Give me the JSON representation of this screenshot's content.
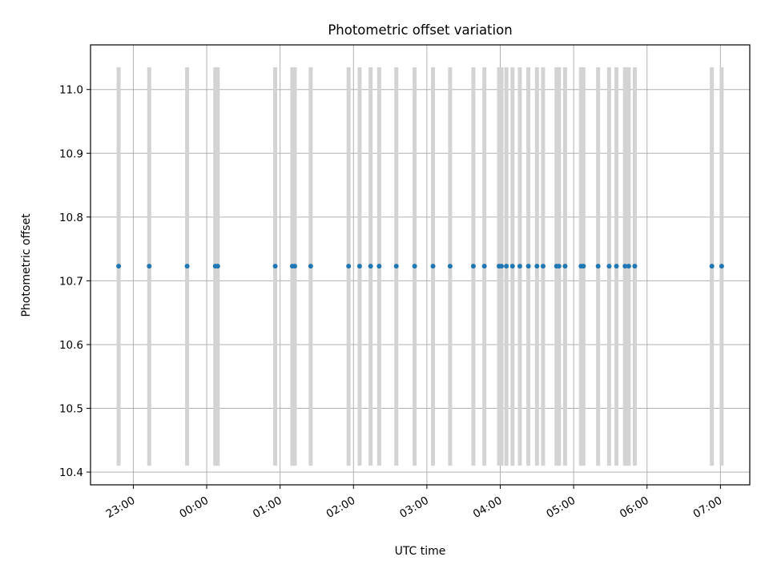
{
  "chart_data": {
    "type": "scatter",
    "title": "Photometric offset variation",
    "xlabel": "UTC time",
    "ylabel": "Photometric offset",
    "x_axis_type": "time",
    "xlim": [
      "22:25",
      "07:24"
    ],
    "ylim": [
      10.38,
      11.07
    ],
    "x_ticks": [
      "23:00",
      "00:00",
      "01:00",
      "02:00",
      "03:00",
      "04:00",
      "05:00",
      "06:00",
      "07:00"
    ],
    "y_ticks": [
      "10.4",
      "10.5",
      "10.6",
      "10.7",
      "10.8",
      "10.9",
      "11.0"
    ],
    "grid": true,
    "point_color": "#1f77b4",
    "errorbar_color": "#d3d3d3",
    "points": [
      {
        "x": "22:48",
        "y": 10.723,
        "y_low": 10.41,
        "y_high": 11.035
      },
      {
        "x": "23:13",
        "y": 10.723,
        "y_low": 10.41,
        "y_high": 11.035
      },
      {
        "x": "23:44",
        "y": 10.723,
        "y_low": 10.41,
        "y_high": 11.035
      },
      {
        "x": "00:07",
        "y": 10.723,
        "y_low": 10.41,
        "y_high": 11.035
      },
      {
        "x": "00:09",
        "y": 10.723,
        "y_low": 10.41,
        "y_high": 11.035
      },
      {
        "x": "00:56",
        "y": 10.723,
        "y_low": 10.41,
        "y_high": 11.035
      },
      {
        "x": "01:10",
        "y": 10.723,
        "y_low": 10.41,
        "y_high": 11.035
      },
      {
        "x": "01:12",
        "y": 10.723,
        "y_low": 10.41,
        "y_high": 11.035
      },
      {
        "x": "01:25",
        "y": 10.723,
        "y_low": 10.41,
        "y_high": 11.035
      },
      {
        "x": "01:56",
        "y": 10.723,
        "y_low": 10.41,
        "y_high": 11.035
      },
      {
        "x": "02:05",
        "y": 10.723,
        "y_low": 10.41,
        "y_high": 11.035
      },
      {
        "x": "02:14",
        "y": 10.723,
        "y_low": 10.41,
        "y_high": 11.035
      },
      {
        "x": "02:21",
        "y": 10.723,
        "y_low": 10.41,
        "y_high": 11.035
      },
      {
        "x": "02:35",
        "y": 10.723,
        "y_low": 10.41,
        "y_high": 11.035
      },
      {
        "x": "02:50",
        "y": 10.723,
        "y_low": 10.41,
        "y_high": 11.035
      },
      {
        "x": "03:05",
        "y": 10.723,
        "y_low": 10.41,
        "y_high": 11.035
      },
      {
        "x": "03:19",
        "y": 10.723,
        "y_low": 10.41,
        "y_high": 11.035
      },
      {
        "x": "03:38",
        "y": 10.723,
        "y_low": 10.41,
        "y_high": 11.035
      },
      {
        "x": "03:47",
        "y": 10.723,
        "y_low": 10.41,
        "y_high": 11.035
      },
      {
        "x": "03:59",
        "y": 10.723,
        "y_low": 10.41,
        "y_high": 11.035
      },
      {
        "x": "04:01",
        "y": 10.723,
        "y_low": 10.41,
        "y_high": 11.035
      },
      {
        "x": "04:05",
        "y": 10.723,
        "y_low": 10.41,
        "y_high": 11.035
      },
      {
        "x": "04:10",
        "y": 10.723,
        "y_low": 10.41,
        "y_high": 11.035
      },
      {
        "x": "04:16",
        "y": 10.723,
        "y_low": 10.41,
        "y_high": 11.035
      },
      {
        "x": "04:23",
        "y": 10.723,
        "y_low": 10.41,
        "y_high": 11.035
      },
      {
        "x": "04:30",
        "y": 10.723,
        "y_low": 10.41,
        "y_high": 11.035
      },
      {
        "x": "04:35",
        "y": 10.723,
        "y_low": 10.41,
        "y_high": 11.035
      },
      {
        "x": "04:46",
        "y": 10.723,
        "y_low": 10.41,
        "y_high": 11.035
      },
      {
        "x": "04:48",
        "y": 10.723,
        "y_low": 10.41,
        "y_high": 11.035
      },
      {
        "x": "04:53",
        "y": 10.723,
        "y_low": 10.41,
        "y_high": 11.035
      },
      {
        "x": "05:06",
        "y": 10.723,
        "y_low": 10.41,
        "y_high": 11.035
      },
      {
        "x": "05:08",
        "y": 10.723,
        "y_low": 10.41,
        "y_high": 11.035
      },
      {
        "x": "05:20",
        "y": 10.723,
        "y_low": 10.41,
        "y_high": 11.035
      },
      {
        "x": "05:29",
        "y": 10.723,
        "y_low": 10.41,
        "y_high": 11.035
      },
      {
        "x": "05:35",
        "y": 10.723,
        "y_low": 10.41,
        "y_high": 11.035
      },
      {
        "x": "05:42",
        "y": 10.723,
        "y_low": 10.41,
        "y_high": 11.035
      },
      {
        "x": "05:45",
        "y": 10.723,
        "y_low": 10.41,
        "y_high": 11.035
      },
      {
        "x": "05:50",
        "y": 10.723,
        "y_low": 10.41,
        "y_high": 11.035
      },
      {
        "x": "06:53",
        "y": 10.723,
        "y_low": 10.41,
        "y_high": 11.035
      },
      {
        "x": "07:01",
        "y": 10.723,
        "y_low": 10.41,
        "y_high": 11.035
      }
    ]
  }
}
